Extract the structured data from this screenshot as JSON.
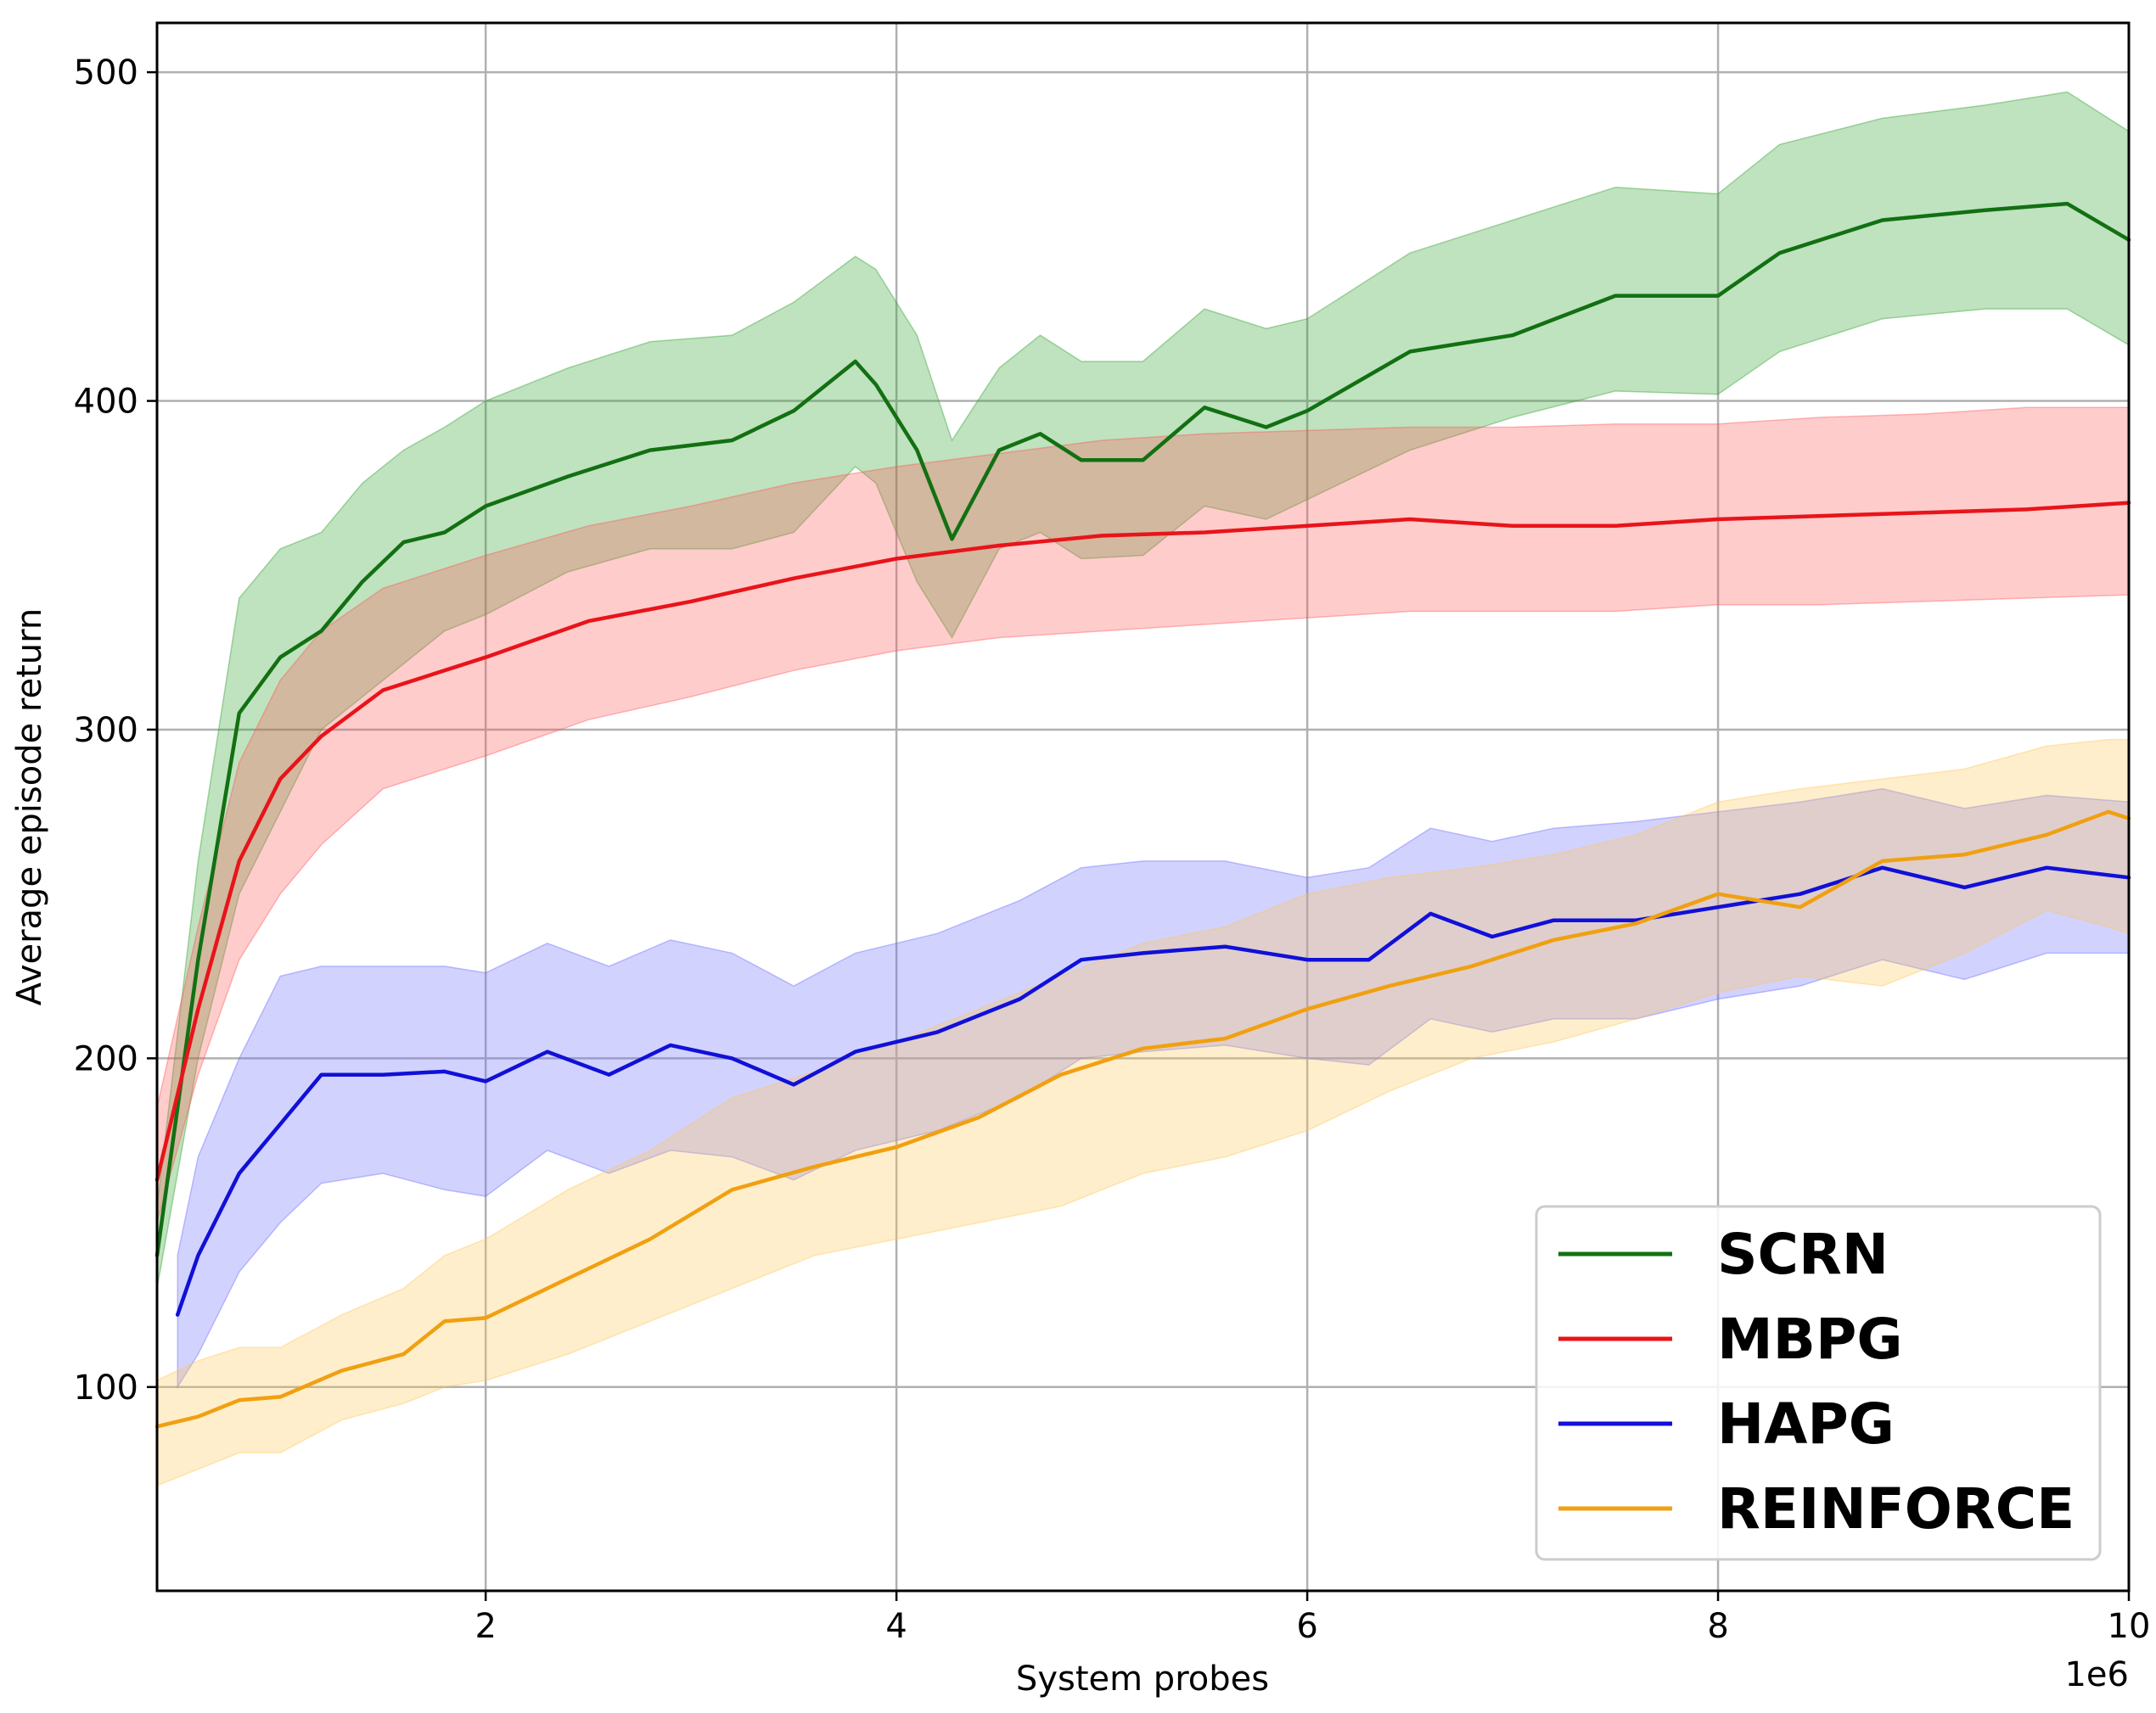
{
  "chart_data": {
    "type": "line",
    "xlabel": "System probes",
    "ylabel": "Average episode return",
    "x_offset_label": "1e6",
    "xlim": [
      0.4,
      10.0
    ],
    "ylim": [
      38,
      515
    ],
    "x_ticks": [
      2,
      4,
      6,
      8,
      10
    ],
    "x_tick_labels": [
      "2",
      "4",
      "6",
      "8",
      "10"
    ],
    "y_ticks": [
      100,
      200,
      300,
      400,
      500
    ],
    "y_tick_labels": [
      "100",
      "200",
      "300",
      "400",
      "500"
    ],
    "grid": true,
    "legend_position": "bottom-right",
    "series": [
      {
        "name": "SCRN",
        "color": "#127012",
        "band_color": "#2ca02c",
        "x": [
          0.4,
          0.6,
          0.8,
          1.0,
          1.2,
          1.4,
          1.6,
          1.8,
          2.0,
          2.4,
          2.8,
          3.2,
          3.5,
          3.8,
          3.9,
          4.1,
          4.27,
          4.5,
          4.7,
          4.9,
          5.2,
          5.5,
          5.8,
          6.0,
          6.5,
          7.0,
          7.5,
          8.0,
          8.3,
          8.8,
          9.3,
          9.7,
          10.0
        ],
        "y": [
          140,
          230,
          305,
          322,
          330,
          345,
          357,
          360,
          368,
          377,
          385,
          388,
          397,
          412,
          405,
          385,
          358,
          385,
          390,
          382,
          382,
          398,
          392,
          397,
          415,
          420,
          432,
          432,
          445,
          455,
          458,
          460,
          449
        ],
        "lower": [
          130,
          200,
          250,
          275,
          300,
          310,
          320,
          330,
          335,
          348,
          355,
          355,
          360,
          380,
          375,
          345,
          328,
          355,
          360,
          352,
          353,
          368,
          364,
          370,
          385,
          395,
          403,
          402,
          415,
          425,
          428,
          428,
          417
        ],
        "upper": [
          155,
          260,
          340,
          355,
          360,
          375,
          385,
          392,
          400,
          410,
          418,
          420,
          430,
          444,
          440,
          420,
          388,
          410,
          420,
          412,
          412,
          428,
          422,
          425,
          445,
          455,
          465,
          463,
          478,
          486,
          490,
          494,
          482
        ]
      },
      {
        "name": "MBPG",
        "color": "#e8141a",
        "band_color": "#ff5555",
        "x": [
          0.4,
          0.6,
          0.8,
          1.0,
          1.2,
          1.5,
          2.0,
          2.5,
          3.0,
          3.5,
          4.0,
          4.5,
          5.0,
          5.5,
          6.0,
          6.5,
          7.0,
          7.5,
          8.0,
          8.5,
          9.0,
          9.5,
          10.0
        ],
        "y": [
          163,
          215,
          260,
          285,
          298,
          312,
          322,
          333,
          339,
          346,
          352,
          356,
          359,
          360,
          362,
          364,
          362,
          362,
          364,
          365,
          366,
          367,
          369
        ],
        "lower": [
          150,
          195,
          230,
          250,
          265,
          282,
          292,
          303,
          310,
          318,
          324,
          328,
          330,
          332,
          334,
          336,
          336,
          336,
          338,
          338,
          339,
          340,
          341
        ],
        "upper": [
          185,
          240,
          290,
          315,
          330,
          343,
          353,
          362,
          368,
          375,
          380,
          384,
          388,
          390,
          391,
          392,
          392,
          393,
          393,
          395,
          396,
          398,
          398
        ]
      },
      {
        "name": "HAPG",
        "color": "#1010d8",
        "band_color": "#6a6aff",
        "x": [
          0.5,
          0.6,
          0.8,
          1.0,
          1.2,
          1.5,
          1.8,
          2.0,
          2.3,
          2.6,
          2.9,
          3.2,
          3.5,
          3.8,
          4.2,
          4.6,
          4.9,
          5.2,
          5.6,
          6.0,
          6.3,
          6.6,
          6.9,
          7.2,
          7.6,
          8.0,
          8.4,
          8.8,
          9.2,
          9.6,
          10.0
        ],
        "y": [
          122,
          140,
          165,
          180,
          195,
          195,
          196,
          193,
          202,
          195,
          204,
          200,
          192,
          202,
          208,
          218,
          230,
          232,
          234,
          230,
          230,
          244,
          237,
          242,
          242,
          246,
          250,
          258,
          252,
          258,
          255
        ],
        "lower": [
          100,
          110,
          135,
          150,
          162,
          165,
          160,
          158,
          172,
          165,
          172,
          170,
          163,
          172,
          178,
          188,
          200,
          202,
          204,
          200,
          198,
          212,
          208,
          212,
          212,
          218,
          222,
          230,
          224,
          232,
          232
        ],
        "upper": [
          140,
          170,
          200,
          225,
          228,
          228,
          228,
          226,
          235,
          228,
          236,
          232,
          222,
          232,
          238,
          248,
          258,
          260,
          260,
          255,
          258,
          270,
          266,
          270,
          272,
          275,
          278,
          282,
          276,
          280,
          278
        ]
      },
      {
        "name": "REINFORCE",
        "color": "#f0a010",
        "band_color": "#ffc655",
        "x": [
          0.4,
          0.6,
          0.8,
          1.0,
          1.3,
          1.6,
          1.8,
          2.0,
          2.4,
          2.8,
          3.2,
          3.6,
          4.0,
          4.4,
          4.8,
          5.2,
          5.6,
          6.0,
          6.4,
          6.8,
          7.2,
          7.6,
          8.0,
          8.4,
          8.8,
          9.2,
          9.6,
          9.9,
          10.0
        ],
        "y": [
          88,
          91,
          96,
          97,
          105,
          110,
          120,
          121,
          133,
          145,
          160,
          167,
          173,
          182,
          195,
          203,
          206,
          215,
          222,
          228,
          236,
          241,
          250,
          246,
          260,
          262,
          268,
          275,
          273
        ],
        "lower": [
          70,
          75,
          80,
          80,
          90,
          95,
          100,
          102,
          110,
          120,
          130,
          140,
          145,
          150,
          155,
          165,
          170,
          178,
          190,
          200,
          205,
          212,
          220,
          225,
          222,
          232,
          245,
          240,
          238
        ],
        "upper": [
          102,
          108,
          112,
          112,
          122,
          130,
          140,
          145,
          160,
          172,
          188,
          196,
          205,
          215,
          225,
          235,
          240,
          250,
          255,
          258,
          262,
          268,
          278,
          282,
          285,
          288,
          295,
          297,
          297
        ]
      }
    ]
  }
}
